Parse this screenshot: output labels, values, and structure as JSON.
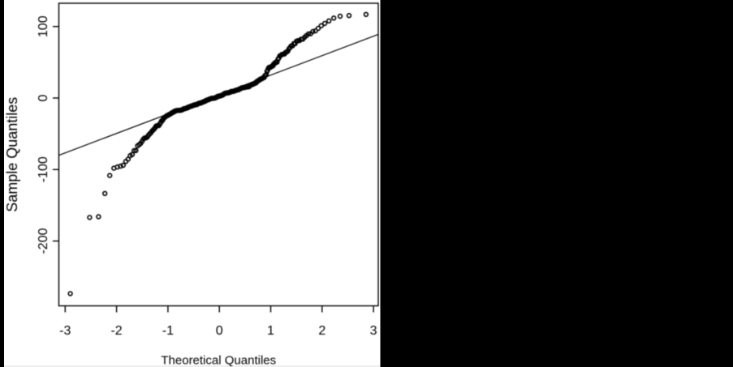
{
  "slide": {
    "background_color": "#000000",
    "panel_color": "#ffffff",
    "ink_color": "#000000"
  },
  "chart_data": {
    "type": "scatter",
    "subtype": "normal-qq-plot",
    "title": "",
    "xlabel": "Theoretical Quantiles",
    "ylabel": "Sample Quantiles",
    "x_ticks": [
      -3,
      -2,
      -1,
      0,
      1,
      2,
      3
    ],
    "y_ticks": [
      -200,
      -100,
      0,
      100
    ],
    "xlim": [
      -3.12,
      3.09
    ],
    "ylim": [
      -290,
      132
    ],
    "grid": false,
    "legend": false,
    "marker": "open-circle",
    "reference_line": {
      "slope": 27.2,
      "intercept": 4.9
    },
    "points": {
      "x": [
        -2.9,
        -2.524,
        -2.351,
        -2.228,
        -2.132,
        -2.052,
        -1.984,
        -1.924,
        -1.87,
        -1.82,
        -1.775,
        -1.734,
        -1.695,
        -1.658,
        -1.624,
        -1.591,
        -1.56,
        -1.531,
        -1.503,
        -1.476,
        -1.45,
        -1.424,
        -1.4,
        -1.377,
        -1.354,
        -1.332,
        -1.311,
        -1.29,
        -1.269,
        -1.25,
        -1.23,
        -1.212,
        -1.193,
        -1.175,
        -1.157,
        -1.14,
        -1.123,
        -1.106,
        -1.09,
        -1.074,
        -1.058,
        -1.043,
        -1.027,
        -1.012,
        -0.998,
        -0.983,
        -0.969,
        -0.954,
        -0.94,
        -0.927,
        -0.913,
        -0.899,
        -0.886,
        -0.873,
        -0.86,
        -0.847,
        -0.834,
        -0.822,
        -0.809,
        -0.797,
        -0.785,
        -0.773,
        -0.761,
        -0.749,
        -0.737,
        -0.725,
        -0.714,
        -0.702,
        -0.691,
        -0.679,
        -0.668,
        -0.657,
        -0.646,
        -0.635,
        -0.624,
        -0.613,
        -0.603,
        -0.592,
        -0.581,
        -0.571,
        -0.56,
        -0.55,
        -0.539,
        -0.529,
        -0.519,
        -0.509,
        -0.498,
        -0.488,
        -0.478,
        -0.468,
        -0.458,
        -0.448,
        -0.439,
        -0.429,
        -0.419,
        -0.409,
        -0.399,
        -0.39,
        -0.38,
        -0.371,
        -0.361,
        -0.351,
        -0.342,
        -0.332,
        -0.323,
        -0.314,
        -0.304,
        -0.295,
        -0.286,
        -0.276,
        -0.267,
        -0.258,
        -0.249,
        -0.239,
        -0.23,
        -0.221,
        -0.212,
        -0.203,
        -0.194,
        -0.184,
        -0.175,
        -0.166,
        -0.157,
        -0.148,
        -0.139,
        -0.13,
        -0.121,
        -0.112,
        -0.103,
        -0.094,
        -0.085,
        -0.076,
        -0.067,
        -0.058,
        -0.049,
        -0.04,
        -0.031,
        -0.022,
        -0.013,
        -0.004,
        0.004,
        0.013,
        0.022,
        0.031,
        0.04,
        0.049,
        0.058,
        0.067,
        0.076,
        0.085,
        0.094,
        0.103,
        0.112,
        0.121,
        0.13,
        0.139,
        0.148,
        0.157,
        0.166,
        0.175,
        0.184,
        0.194,
        0.203,
        0.212,
        0.221,
        0.23,
        0.239,
        0.249,
        0.258,
        0.267,
        0.276,
        0.286,
        0.295,
        0.304,
        0.314,
        0.323,
        0.332,
        0.342,
        0.351,
        0.361,
        0.371,
        0.38,
        0.39,
        0.399,
        0.409,
        0.419,
        0.429,
        0.439,
        0.448,
        0.458,
        0.468,
        0.478,
        0.488,
        0.498,
        0.509,
        0.519,
        0.529,
        0.539,
        0.55,
        0.56,
        0.571,
        0.581,
        0.592,
        0.603,
        0.613,
        0.624,
        0.635,
        0.646,
        0.657,
        0.668,
        0.679,
        0.691,
        0.702,
        0.714,
        0.725,
        0.737,
        0.749,
        0.761,
        0.773,
        0.785,
        0.797,
        0.809,
        0.822,
        0.834,
        0.847,
        0.86,
        0.873,
        0.886,
        0.899,
        0.913,
        0.927,
        0.94,
        0.954,
        0.969,
        0.983,
        0.998,
        1.012,
        1.027,
        1.043,
        1.058,
        1.074,
        1.09,
        1.106,
        1.123,
        1.14,
        1.157,
        1.175,
        1.193,
        1.212,
        1.23,
        1.25,
        1.269,
        1.29,
        1.311,
        1.332,
        1.354,
        1.377,
        1.4,
        1.424,
        1.45,
        1.476,
        1.503,
        1.531,
        1.56,
        1.591,
        1.624,
        1.658,
        1.695,
        1.734,
        1.775,
        1.82,
        1.87,
        1.924,
        1.984,
        2.052,
        2.132,
        2.228,
        2.351,
        2.524,
        2.855
      ],
      "y": [
        -273.5,
        -167.0,
        -166.0,
        -133.5,
        -108.3,
        -98.1,
        -96.4,
        -95.3,
        -94.0,
        -88.7,
        -85.6,
        -80.6,
        -79.0,
        -73.7,
        -73.4,
        -66.9,
        -65.2,
        -63.4,
        -60.4,
        -57.2,
        -55.7,
        -55.6,
        -54.4,
        -51.9,
        -50.1,
        -48.6,
        -46.5,
        -44.9,
        -43.3,
        -41.6,
        -39.3,
        -38.6,
        -38.6,
        -38.4,
        -36.0,
        -34.4,
        -32.0,
        -31.3,
        -29.1,
        -27.4,
        -26.9,
        -25.9,
        -24.9,
        -24.5,
        -24.2,
        -23.1,
        -22.8,
        -22.3,
        -21.6,
        -20.9,
        -20.2,
        -20.1,
        -19.5,
        -18.5,
        -18.4,
        -17.8,
        -17.6,
        -17.4,
        -17.3,
        -17.3,
        -17.2,
        -17.2,
        -17.2,
        -16.8,
        -16.8,
        -16.6,
        -16.1,
        -15.3,
        -15.1,
        -14.9,
        -14.8,
        -14.6,
        -14.2,
        -14.1,
        -13.9,
        -12.9,
        -12.9,
        -12.7,
        -12.1,
        -11.9,
        -11.7,
        -11.3,
        -11.1,
        -10.9,
        -10.5,
        -10.4,
        -9.9,
        -9.6,
        -9.6,
        -9.4,
        -9.3,
        -9.3,
        -8.8,
        -8.8,
        -8.0,
        -7.9,
        -7.5,
        -7.1,
        -7.1,
        -7.0,
        -7.0,
        -6.6,
        -6.2,
        -5.9,
        -5.7,
        -5.4,
        -5.0,
        -4.9,
        -4.5,
        -4.5,
        -3.9,
        -3.4,
        -3.3,
        -3.0,
        -2.6,
        -2.5,
        -2.1,
        -2.0,
        -1.6,
        -1.3,
        -1.0,
        -1.0,
        -0.6,
        -0.5,
        -0.4,
        -0.3,
        -0.3,
        -0.2,
        -0.2,
        -0.0,
        0.1,
        0.5,
        0.7,
        1.1,
        1.1,
        1.9,
        2.3,
        2.5,
        2.5,
        2.6,
        2.8,
        3.0,
        3.3,
        3.4,
        3.4,
        3.7,
        4.1,
        4.3,
        4.7,
        5.5,
        6.0,
        6.2,
        6.6,
        6.7,
        7.0,
        7.1,
        7.2,
        7.2,
        7.3,
        7.4,
        7.6,
        7.7,
        8.0,
        8.2,
        8.8,
        9.1,
        9.1,
        9.2,
        9.3,
        9.3,
        9.5,
        9.7,
        10.1,
        10.2,
        10.4,
        10.9,
        11.0,
        11.1,
        11.3,
        11.5,
        11.7,
        11.8,
        12.6,
        12.8,
        13.2,
        13.4,
        13.9,
        14.4,
        14.4,
        14.4,
        14.5,
        14.6,
        14.8,
        15.2,
        15.2,
        15.3,
        15.4,
        15.5,
        15.5,
        15.8,
        15.8,
        16.1,
        17.2,
        17.7,
        18.3,
        18.4,
        19.2,
        19.3,
        19.4,
        19.7,
        20.3,
        20.8,
        21.0,
        21.2,
        22.9,
        23.0,
        24.0,
        24.4,
        25.1,
        25.3,
        26.4,
        26.7,
        26.8,
        27.4,
        28.1,
        28.4,
        28.8,
        31.3,
        32.0,
        32.4,
        37.3,
        39.0,
        41.5,
        42.8,
        43.0,
        43.1,
        44.2,
        44.6,
        45.0,
        47.6,
        48.1,
        49.9,
        50.0,
        50.2,
        54.2,
        55.8,
        58.8,
        59.4,
        60.6,
        61.3,
        61.4,
        61.6,
        63.8,
        64.5,
        65.6,
        68.7,
        70.8,
        72.9,
        73.0,
        76.1,
        76.2,
        79.6,
        80.2,
        80.3,
        82.3,
        82.4,
        85.0,
        87.3,
        89.6,
        90.0,
        93.0,
        93.9,
        97.5,
        101.2,
        104.4,
        107.9,
        111.8,
        114.4,
        115.3,
        116.9
      ]
    }
  }
}
